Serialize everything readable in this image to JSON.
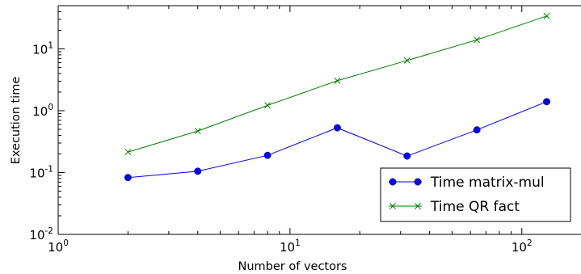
{
  "chart_data": {
    "type": "line",
    "xlabel": "Number of vectors",
    "ylabel": "Execution time",
    "xscale": "log",
    "yscale": "log",
    "xlim": [
      1,
      180
    ],
    "ylim": [
      0.01,
      50
    ],
    "x_ticks": [
      {
        "base": "10",
        "exp": "0",
        "value": 1
      },
      {
        "base": "10",
        "exp": "1",
        "value": 10
      },
      {
        "base": "10",
        "exp": "2",
        "value": 100
      }
    ],
    "y_ticks": [
      {
        "base": "10",
        "exp": "-2",
        "value": 0.01
      },
      {
        "base": "10",
        "exp": "-1",
        "value": 0.1
      },
      {
        "base": "10",
        "exp": "0",
        "value": 1
      },
      {
        "base": "10",
        "exp": "1",
        "value": 10
      }
    ],
    "grid": false,
    "legend_position": "lower-right",
    "x": [
      2,
      4,
      8,
      16,
      32,
      64,
      128
    ],
    "series": [
      {
        "name": "Time matrix-mul",
        "values": [
          0.083,
          0.105,
          0.19,
          0.53,
          0.185,
          0.49,
          1.4
        ],
        "color": "#0000ff",
        "marker": "circle"
      },
      {
        "name": "Time QR fact",
        "values": [
          0.215,
          0.47,
          1.22,
          3.05,
          6.5,
          14.0,
          34.0
        ],
        "color": "#008000",
        "marker": "x"
      }
    ]
  }
}
